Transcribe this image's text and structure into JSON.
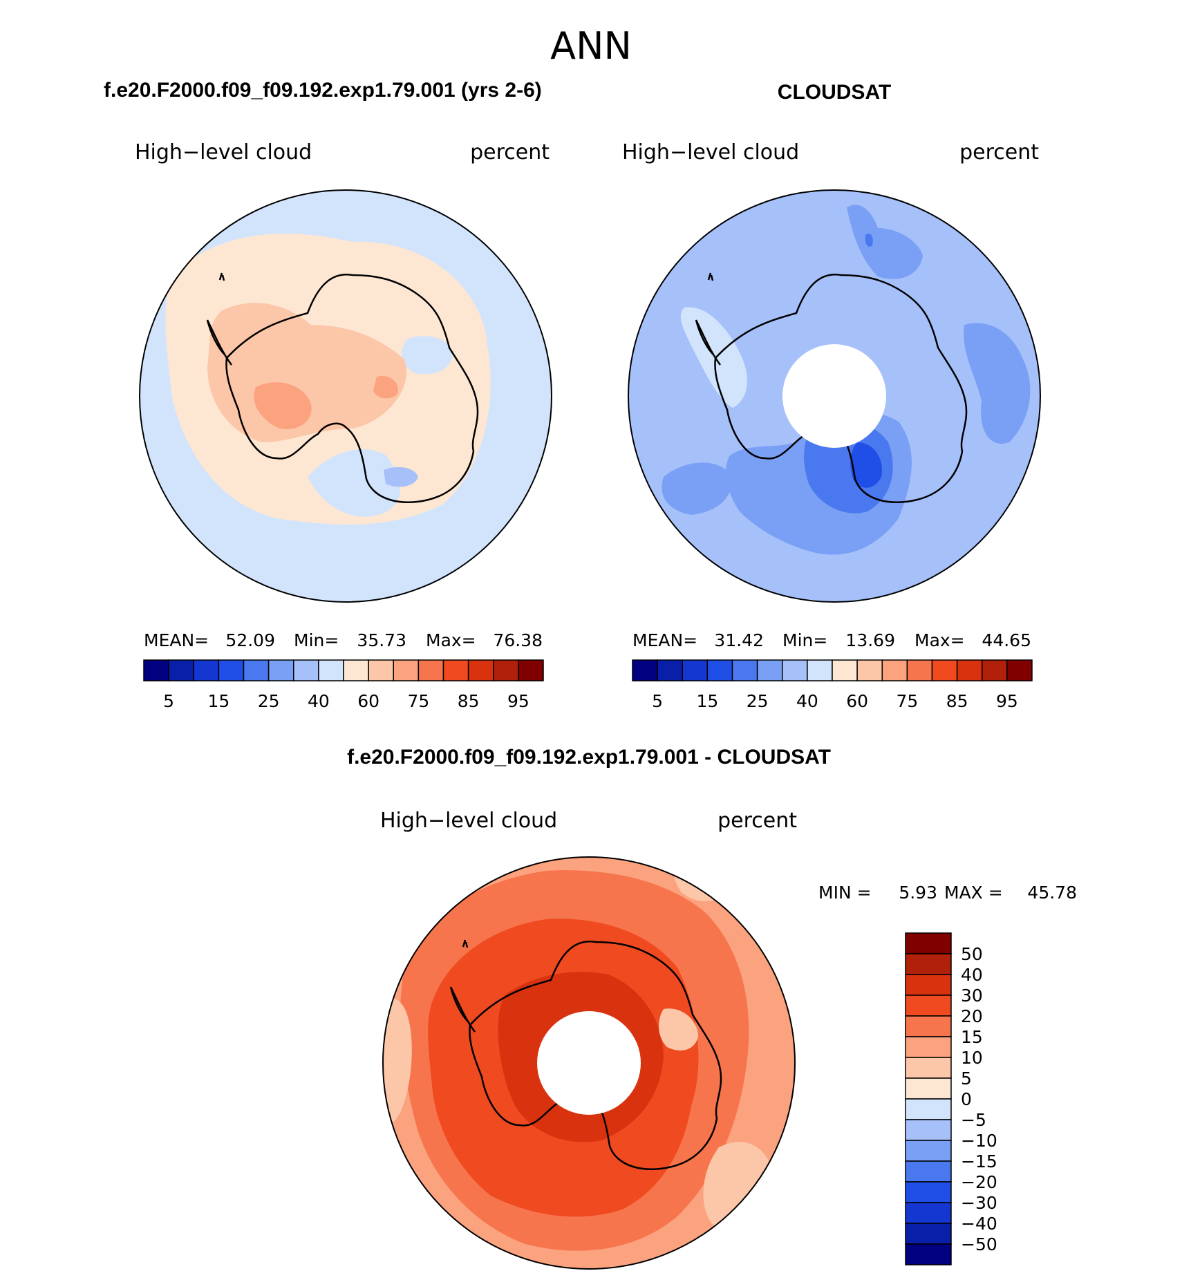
{
  "figure_title": "ANN",
  "panels": [
    {
      "title": "f.e20.F2000.f09_f09.192.exp1.79.001 (yrs 2-6)",
      "left_label": "High−level cloud",
      "right_label": "percent",
      "stats": {
        "mean_label": "MEAN=",
        "mean": "52.09",
        "min_label": "Min=",
        "min": "35.73",
        "max_label": "Max=",
        "max": "76.38"
      }
    },
    {
      "title": "CLOUDSAT",
      "left_label": "High−level cloud",
      "right_label": "percent",
      "stats": {
        "mean_label": "MEAN=",
        "mean": "31.42",
        "min_label": "Min=",
        "min": "13.69",
        "max_label": "Max=",
        "max": "44.65"
      }
    },
    {
      "title": "f.e20.F2000.f09_f09.192.exp1.79.001 - CLOUDSAT",
      "left_label": "High−level cloud",
      "right_label": "percent",
      "stats": {
        "min_label": "MIN =",
        "min": "5.93",
        "max_label": "MAX =",
        "max": "45.78"
      }
    }
  ],
  "abs_colorbar": {
    "colors": [
      "#000080",
      "#0a1fa8",
      "#1437d2",
      "#1f4fe6",
      "#4a78ee",
      "#7aa0f5",
      "#a6c0fa",
      "#d2e4fc",
      "#fde7d3",
      "#fcc6a8",
      "#fba27f",
      "#f7754d",
      "#ef4a20",
      "#d9320f",
      "#b0200a",
      "#800000"
    ],
    "labels": [
      "5",
      "15",
      "25",
      "40",
      "60",
      "75",
      "85",
      "95"
    ]
  },
  "diff_colorbar": {
    "colors": [
      "#800000",
      "#b0200a",
      "#d9320f",
      "#ef4a20",
      "#f7754d",
      "#fba27f",
      "#fcc6a8",
      "#fde7d3",
      "#d2e4fc",
      "#a6c0fa",
      "#7aa0f5",
      "#4a78ee",
      "#1f4fe6",
      "#1437d2",
      "#0a1fa8",
      "#000080"
    ],
    "labels": [
      "50",
      "40",
      "30",
      "20",
      "15",
      "10",
      "5",
      "0",
      "−5",
      "−10",
      "−15",
      "−20",
      "−30",
      "−40",
      "−50"
    ]
  }
}
